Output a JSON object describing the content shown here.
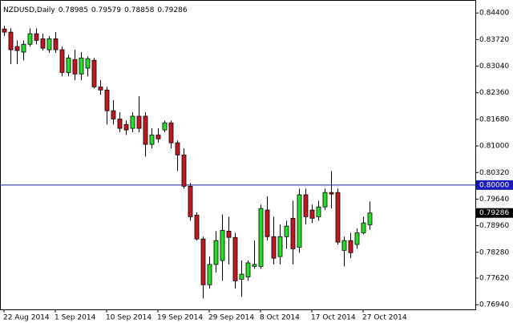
{
  "chart_data": {
    "type": "candlestick",
    "title": "NZDUSD,Daily",
    "categories": [
      "22 Aug 2014",
      null,
      null,
      null,
      null,
      null,
      null,
      null,
      "1 Sep 2014",
      null,
      null,
      null,
      null,
      null,
      null,
      null,
      "10 Sep 2014",
      null,
      null,
      null,
      null,
      null,
      null,
      null,
      "19 Sep 2014",
      null,
      null,
      null,
      null,
      null,
      null,
      null,
      "29 Sep 2014",
      null,
      null,
      null,
      null,
      null,
      null,
      null,
      "8 Oct 2014",
      null,
      null,
      null,
      null,
      null,
      null,
      null,
      "17 Oct 2014",
      null,
      null,
      null,
      null,
      null,
      null,
      null,
      "27 Oct 2014",
      null
    ],
    "open": [
      0.8399,
      0.8391,
      0.8354,
      0.834,
      0.836,
      0.8387,
      0.8374,
      0.8346,
      0.8374,
      0.8346,
      0.8288,
      0.8321,
      0.8284,
      0.8299,
      0.8319,
      0.8251,
      0.8243,
      0.819,
      0.8169,
      0.8155,
      0.8145,
      0.8176,
      0.8176,
      0.8104,
      0.8128,
      0.8141,
      0.8159,
      0.8108,
      0.8077,
      0.7997,
      0.7923,
      0.7862,
      0.7745,
      0.7797,
      0.7807,
      0.7882,
      0.7866,
      0.7759,
      0.7765,
      0.7792,
      0.7792,
      0.7936,
      0.7868,
      0.7817,
      0.7868,
      0.7915,
      0.7841,
      0.7975,
      0.7936,
      0.7919,
      0.7944,
      0.7981,
      0.7981,
      0.7833,
      0.7858,
      0.7848,
      0.7878,
      0.78985
    ],
    "high": [
      0.8407,
      0.8401,
      0.837,
      0.837,
      0.8401,
      0.8401,
      0.8387,
      0.8381,
      0.8391,
      0.8354,
      0.8333,
      0.8346,
      0.834,
      0.8329,
      0.8325,
      0.8268,
      0.8251,
      0.8217,
      0.8186,
      0.8165,
      0.8186,
      0.8227,
      0.8186,
      0.8145,
      0.8145,
      0.8165,
      0.8165,
      0.8114,
      0.8094,
      0.8005,
      0.793,
      0.7868,
      0.7817,
      0.7882,
      0.7925,
      0.7919,
      0.7878,
      0.7807,
      0.7807,
      0.7858,
      0.795,
      0.7971,
      0.7919,
      0.7899,
      0.7909,
      0.796,
      0.7991,
      0.7991,
      0.795,
      0.796,
      0.7991,
      0.8036,
      0.7991,
      0.7868,
      0.7878,
      0.7889,
      0.7919,
      0.79579
    ],
    "low": [
      0.8381,
      0.8309,
      0.8309,
      0.8319,
      0.8354,
      0.836,
      0.8344,
      0.8338,
      0.8338,
      0.8278,
      0.8278,
      0.8268,
      0.8268,
      0.8278,
      0.8247,
      0.8231,
      0.8155,
      0.8155,
      0.8135,
      0.8128,
      0.8135,
      0.8135,
      0.8073,
      0.8094,
      0.8108,
      0.8135,
      0.8094,
      0.8036,
      0.7991,
      0.7909,
      0.7858,
      0.771,
      0.7735,
      0.7776,
      0.7755,
      0.7797,
      0.7735,
      0.7714,
      0.7755,
      0.7786,
      0.7786,
      0.7858,
      0.7797,
      0.7797,
      0.7837,
      0.7797,
      0.7827,
      0.7899,
      0.7903,
      0.7909,
      0.7936,
      0.794,
      0.7848,
      0.7792,
      0.7813,
      0.7837,
      0.7874,
      0.78858
    ],
    "close": [
      0.8391,
      0.8346,
      0.8344,
      0.836,
      0.8387,
      0.837,
      0.835,
      0.8374,
      0.8346,
      0.8288,
      0.8325,
      0.8284,
      0.8325,
      0.8323,
      0.8251,
      0.8243,
      0.819,
      0.8169,
      0.8145,
      0.8141,
      0.8176,
      0.8145,
      0.8104,
      0.8128,
      0.8118,
      0.8159,
      0.8108,
      0.8077,
      0.7997,
      0.7919,
      0.7862,
      0.7745,
      0.7797,
      0.7858,
      0.7884,
      0.7866,
      0.7755,
      0.7772,
      0.7801,
      0.7797,
      0.794,
      0.7868,
      0.7813,
      0.7868,
      0.7895,
      0.7837,
      0.7975,
      0.7919,
      0.7915,
      0.7944,
      0.7981,
      0.7977,
      0.7854,
      0.7858,
      0.7827,
      0.7878,
      0.7903,
      0.79286
    ],
    "up_color": "#22e022",
    "down_color": "#c8141c",
    "ylim": [
      0.768,
      0.8465
    ],
    "yticks": [
      {
        "value": 0.844,
        "label": "0.84400"
      },
      {
        "value": 0.8372,
        "label": "0.83720"
      },
      {
        "value": 0.8304,
        "label": "0.83040"
      },
      {
        "value": 0.8236,
        "label": "0.82360"
      },
      {
        "value": 0.8168,
        "label": "0.81680"
      },
      {
        "value": 0.81,
        "label": "0.81000"
      },
      {
        "value": 0.8032,
        "label": "0.80320"
      },
      {
        "value": 0.7964,
        "label": "0.79640"
      },
      {
        "value": 0.7896,
        "label": "0.78960"
      },
      {
        "value": 0.7828,
        "label": "0.78280"
      },
      {
        "value": 0.7762,
        "label": "0.77620"
      },
      {
        "value": 0.7694,
        "label": "0.76940"
      }
    ],
    "hline": {
      "value": 0.8,
      "label": "0.80000",
      "color": "#1a1ab8"
    },
    "grid": false
  }
}
